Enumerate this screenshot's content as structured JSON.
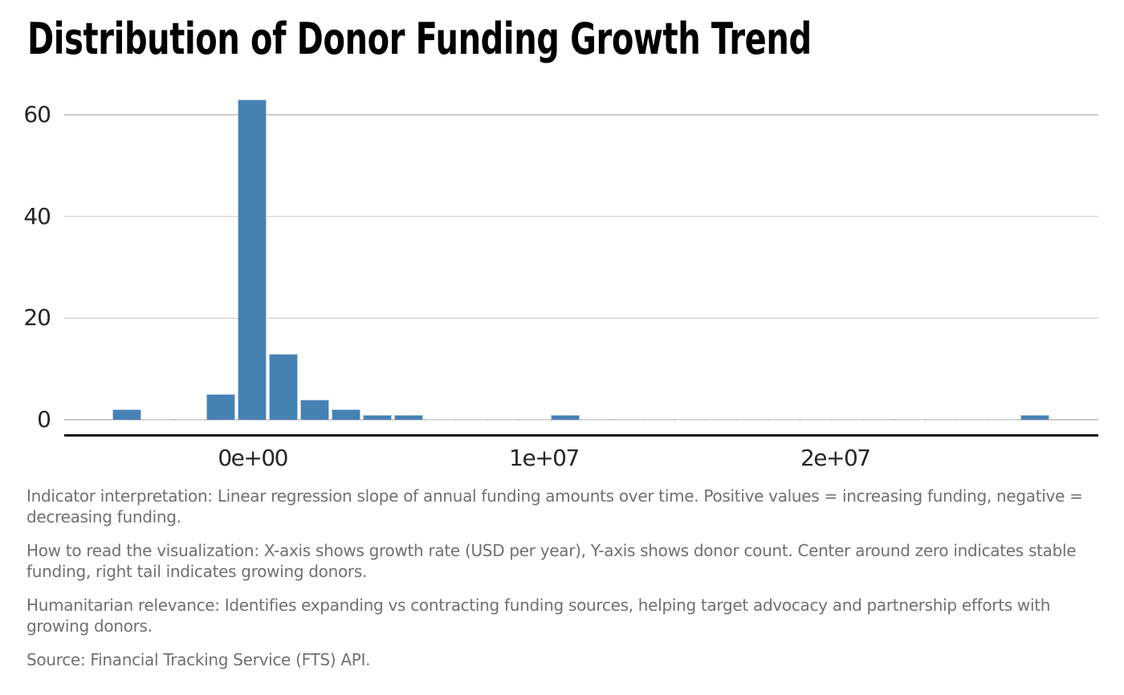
{
  "chart_data": {
    "type": "histogram",
    "title": "Distribution of Donor Funding Growth Trend",
    "xlabel": "",
    "ylabel": "",
    "bins": 30,
    "bin_start": -4850000,
    "bin_width": 1075000,
    "counts": [
      2,
      0,
      0,
      5,
      63,
      13,
      4,
      2,
      1,
      1,
      0,
      0,
      0,
      0,
      1,
      0,
      0,
      0,
      0,
      0,
      0,
      0,
      0,
      0,
      0,
      0,
      0,
      0,
      0,
      1
    ],
    "total_count": 93,
    "x_ticks": [
      {
        "value": 0,
        "label": "0e+00"
      },
      {
        "value": 10000000,
        "label": "1e+07"
      },
      {
        "value": 20000000,
        "label": "2e+07"
      }
    ],
    "y_ticks": [
      0,
      20,
      40,
      60
    ],
    "ylim": [
      0,
      65
    ],
    "xlim": [
      -6200000,
      28800000
    ],
    "grid": "horizontal",
    "legend": "none",
    "colors": {
      "bar_fill": "#4681b4",
      "bar_edge": "#b7cde2",
      "gridline": "#cbcbcb",
      "zero_bin": "#d9d9d9",
      "axis_line": "#141414",
      "tick_text": "#262626",
      "title_text": "#000000",
      "note_text": "#707070"
    }
  },
  "annotations": [
    "Indicator interpretation: Linear regression slope of annual funding amounts over time. Positive values = increasing funding, negative = decreasing funding.",
    "How to read the visualization: X-axis shows growth rate (USD per year), Y-axis shows donor count. Center around zero indicates stable funding, right tail indicates growing donors.",
    "Humanitarian relevance: Identifies expanding vs contracting funding sources, helping target advocacy and partnership efforts with growing donors.",
    "Source: Financial Tracking Service (FTS) API."
  ]
}
